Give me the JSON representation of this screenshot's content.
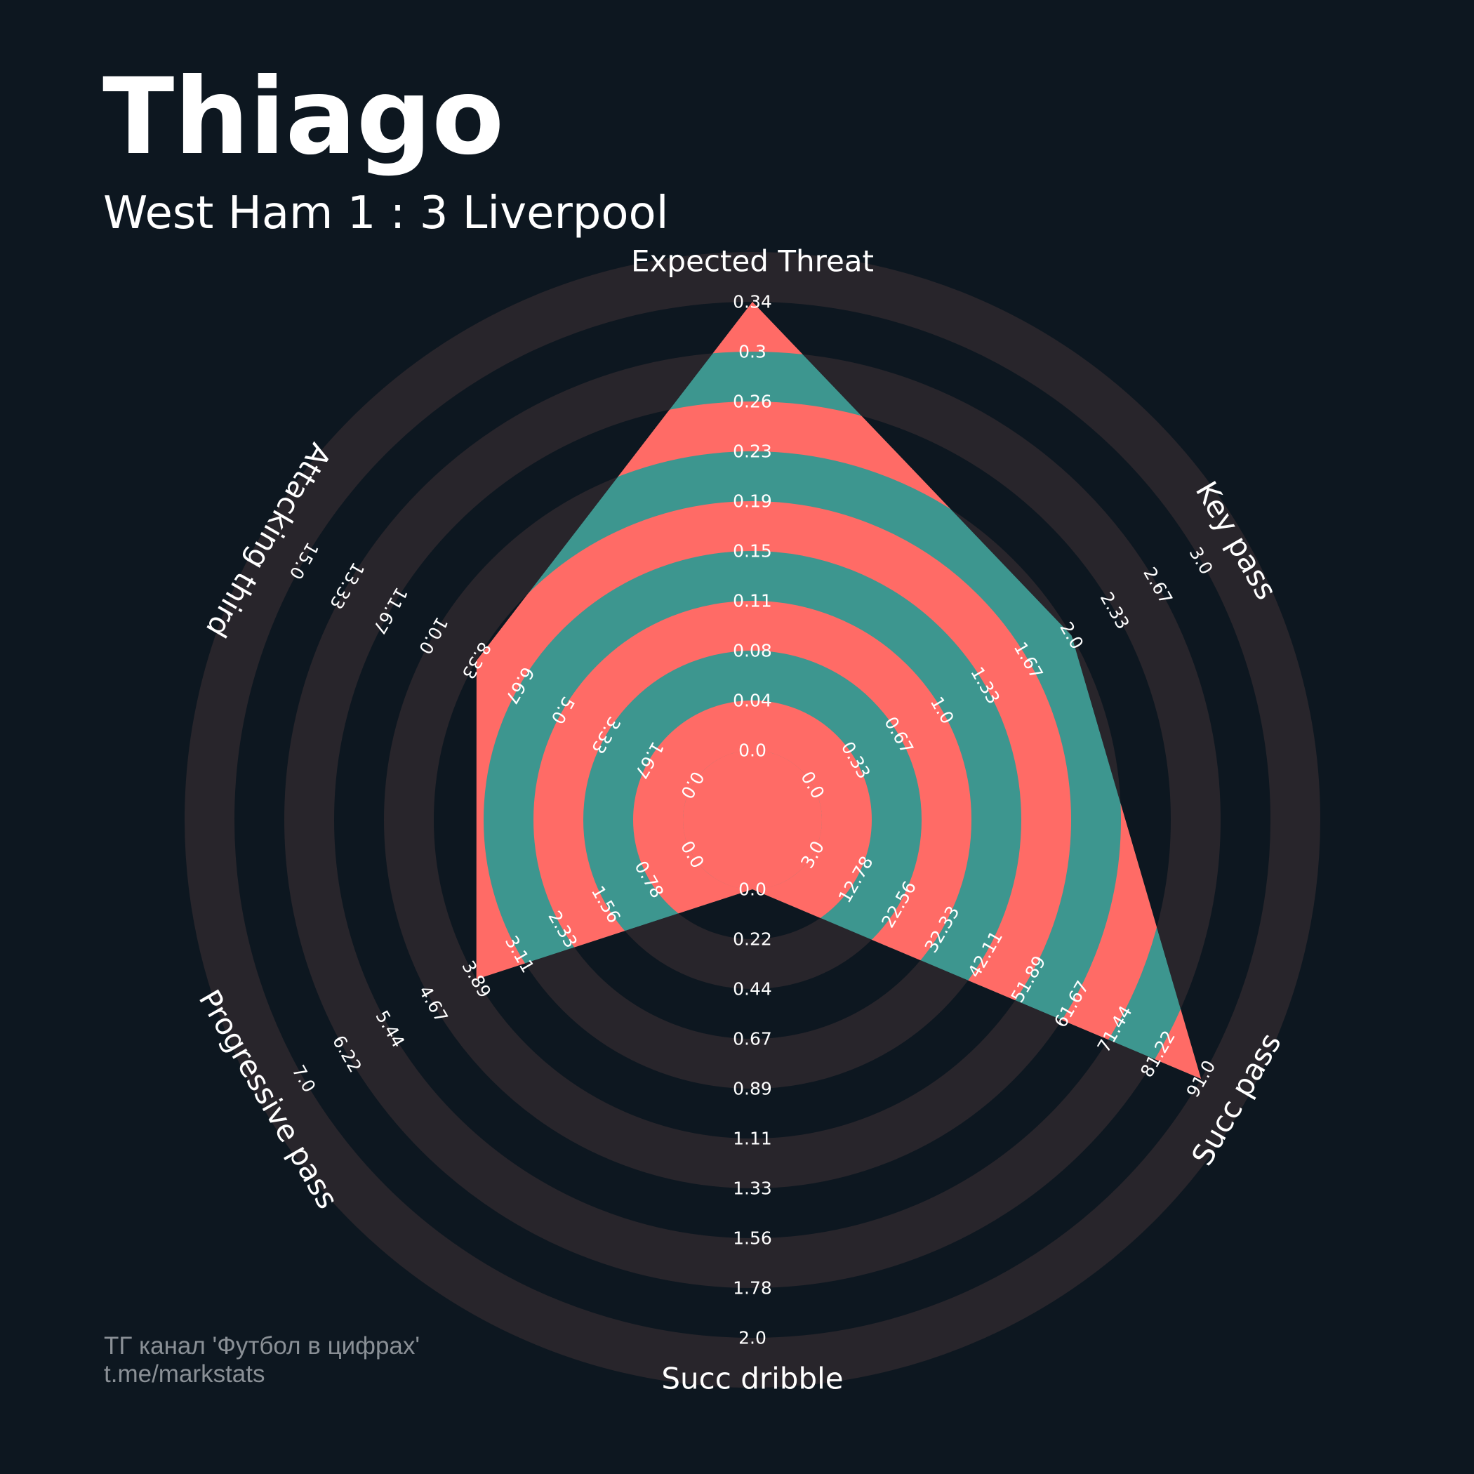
{
  "title": "Thiago",
  "subtitle": "West Ham 1 : 3 Liverpool",
  "footer": {
    "line1": "ТГ канал 'Футбол в цифрах'",
    "line2": "t.me/markstats"
  },
  "colors": {
    "background": "#0d1720",
    "ring": "#28252b",
    "radar_primary": "#3d968f",
    "radar_alternate": "#ff6b66",
    "text": "#ffffff",
    "footer_text": "#8a9096"
  },
  "chart_data": {
    "type": "radar",
    "params": [
      "Expected Threat",
      "Key pass",
      "Succ pass",
      "Succ dribble",
      "Progressive pass",
      "Attacking third"
    ],
    "ranges": [
      [
        0.0,
        0.34
      ],
      [
        0.0,
        3.0
      ],
      [
        3.0,
        91.0
      ],
      [
        0.0,
        2.0
      ],
      [
        0.0,
        7.0
      ],
      [
        0.0,
        15.0
      ]
    ],
    "values": [
      0.34,
      2.0,
      91.0,
      0.0,
      3.89,
      8.33
    ],
    "ticks": [
      [
        "0.0",
        "0.04",
        "0.08",
        "0.11",
        "0.15",
        "0.19",
        "0.23",
        "0.26",
        "0.3",
        "0.34"
      ],
      [
        "0.0",
        "0.33",
        "0.67",
        "1.0",
        "1.33",
        "1.67",
        "2.0",
        "2.33",
        "2.67",
        "3.0"
      ],
      [
        "3.0",
        "12.78",
        "22.56",
        "32.33",
        "42.11",
        "51.89",
        "61.67",
        "71.44",
        "81.22",
        "91.0"
      ],
      [
        "0.0",
        "0.22",
        "0.44",
        "0.67",
        "0.89",
        "1.11",
        "1.33",
        "1.56",
        "1.78",
        "2.0"
      ],
      [
        "0.0",
        "0.78",
        "1.56",
        "2.33",
        "3.11",
        "3.89",
        "4.67",
        "5.44",
        "6.22",
        "7.0"
      ],
      [
        "0.0",
        "1.67",
        "3.33",
        "5.0",
        "6.67",
        "8.33",
        "10.0",
        "11.67",
        "13.33",
        "15.0"
      ]
    ],
    "grid": "alternating rings",
    "legend": "none"
  }
}
